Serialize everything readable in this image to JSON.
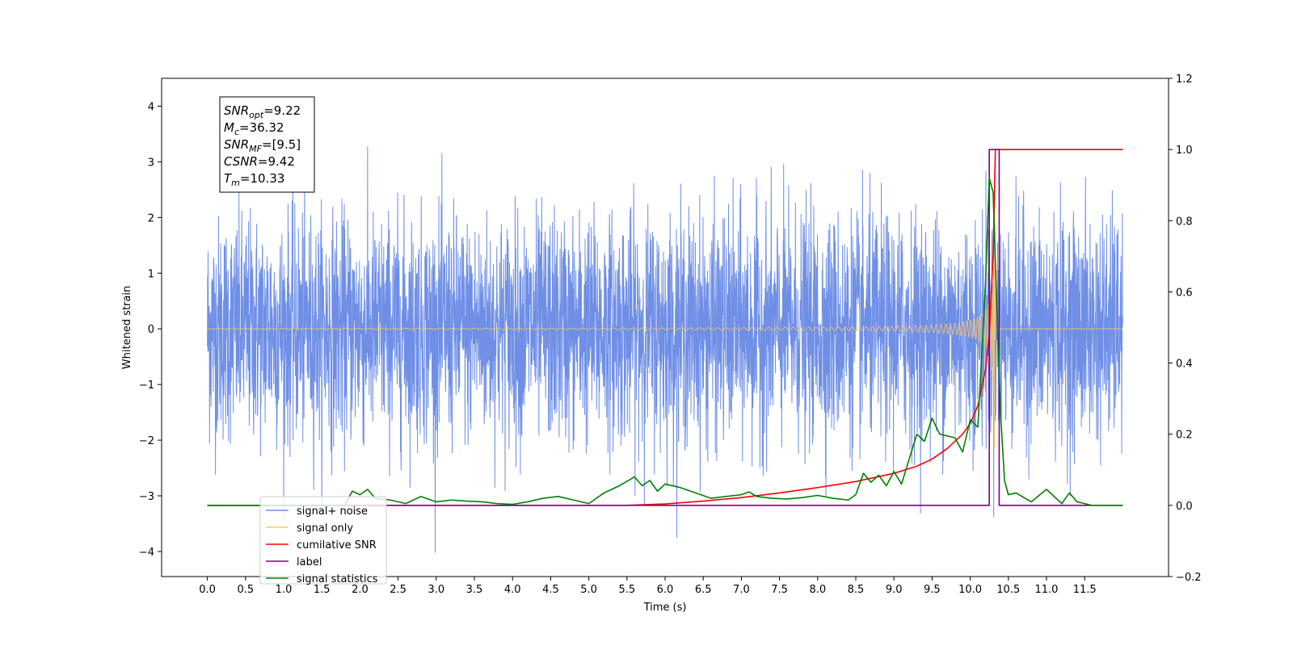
{
  "chart_data": {
    "type": "line",
    "xlabel": "Time (s)",
    "ylabel": "Whitened strain",
    "xlim": [
      -0.6,
      12.6
    ],
    "ylim": [
      -4.45,
      4.5
    ],
    "y2lim": [
      -0.2,
      1.2
    ],
    "x_ticks": [
      0.0,
      0.5,
      1.0,
      1.5,
      2.0,
      2.5,
      3.0,
      3.5,
      4.0,
      4.5,
      5.0,
      5.5,
      6.0,
      6.5,
      7.0,
      7.5,
      8.0,
      8.5,
      9.0,
      9.5,
      10.0,
      10.5,
      11.0,
      11.5
    ],
    "x_tick_labels": [
      "0.0",
      "0.5",
      "1.0",
      "1.5",
      "2.0",
      "2.5",
      "3.0",
      "3.5",
      "4.0",
      "4.5",
      "5.0",
      "5.5",
      "6.0",
      "6.5",
      "7.0",
      "7.5",
      "8.0",
      "8.5",
      "9.0",
      "9.5",
      "10.0",
      "10.5",
      "11.0",
      "11.5"
    ],
    "y_ticks": [
      -4,
      -3,
      -2,
      -1,
      0,
      1,
      2,
      3,
      4
    ],
    "y_tick_labels": [
      "−4",
      "−3",
      "−2",
      "−1",
      "0",
      "1",
      "2",
      "3",
      "4"
    ],
    "y2_ticks": [
      -0.2,
      0.0,
      0.2,
      0.4,
      0.6,
      0.8,
      1.0,
      1.2
    ],
    "y2_tick_labels": [
      "−0.2",
      "0.0",
      "0.2",
      "0.4",
      "0.6",
      "0.8",
      "1.0",
      "1.2"
    ],
    "legend_position": "lower-left",
    "legend": [
      {
        "name": "signal+ noise",
        "color": "#6f8fe6"
      },
      {
        "name": "signal only",
        "color": "#ffc864"
      },
      {
        "name": "cumilative SNR",
        "color": "#ff0000"
      },
      {
        "name": "label",
        "color": "#800080"
      },
      {
        "name": "signal statistics",
        "color": "#008000"
      }
    ],
    "info_box": [
      {
        "base": "SNR",
        "sub": "opt",
        "value": "=9.22"
      },
      {
        "base": "M",
        "sub": "c",
        "value": "=36.32"
      },
      {
        "base": "SNR",
        "sub": "MF",
        "value": "=[9.5]"
      },
      {
        "base": "CSNR",
        "sub": "",
        "value": "=9.42"
      },
      {
        "base": "T",
        "sub": "m",
        "value": "=10.33"
      }
    ],
    "series": [
      {
        "name": "signal+ noise",
        "axis": "left",
        "color": "#6f8fe6",
        "x_range": [
          0.0,
          12.0
        ],
        "typical_amplitude": 1.0,
        "approx_range": [
          -4.05,
          4.12
        ]
      },
      {
        "name": "signal only",
        "axis": "left",
        "color": "#ffc864",
        "chirp_end": 10.33,
        "peak_amplitude": 3.3
      },
      {
        "name": "cumilative SNR",
        "axis": "right",
        "color": "#ff0000",
        "x": [
          0.0,
          5.5,
          6.0,
          6.5,
          7.0,
          7.5,
          8.0,
          8.5,
          9.0,
          9.3,
          9.5,
          9.7,
          9.9,
          10.0,
          10.1,
          10.2,
          10.25,
          10.3,
          10.33,
          12.0
        ],
        "values": [
          0.0,
          0.0,
          0.004,
          0.012,
          0.022,
          0.035,
          0.05,
          0.067,
          0.09,
          0.11,
          0.13,
          0.16,
          0.2,
          0.23,
          0.28,
          0.38,
          0.48,
          0.7,
          1.0,
          1.0
        ]
      },
      {
        "name": "label",
        "axis": "right",
        "color": "#800080",
        "x": [
          0.0,
          10.25,
          10.25,
          10.38,
          10.38,
          12.0
        ],
        "values": [
          0.0,
          0.0,
          1.0,
          1.0,
          0.0,
          0.0
        ]
      },
      {
        "name": "signal statistics",
        "axis": "right",
        "color": "#008000",
        "x": [
          0.0,
          1.8,
          1.9,
          2.0,
          2.1,
          2.2,
          2.4,
          2.6,
          2.8,
          3.0,
          3.2,
          3.4,
          3.6,
          3.8,
          4.0,
          4.2,
          4.4,
          4.6,
          4.8,
          5.0,
          5.2,
          5.4,
          5.6,
          5.7,
          5.8,
          5.9,
          6.0,
          6.2,
          6.4,
          6.6,
          6.8,
          7.0,
          7.1,
          7.2,
          7.4,
          7.6,
          7.8,
          8.0,
          8.2,
          8.4,
          8.5,
          8.6,
          8.7,
          8.8,
          8.9,
          9.0,
          9.1,
          9.2,
          9.3,
          9.4,
          9.5,
          9.6,
          9.8,
          9.9,
          10.0,
          10.1,
          10.2,
          10.25,
          10.3,
          10.35,
          10.4,
          10.45,
          10.5,
          10.6,
          10.8,
          11.0,
          11.2,
          11.3,
          11.4,
          11.6,
          11.8,
          12.0
        ],
        "values": [
          0.0,
          0.0,
          0.04,
          0.03,
          0.045,
          0.02,
          0.015,
          0.005,
          0.025,
          0.01,
          0.015,
          0.012,
          0.01,
          0.005,
          0.003,
          0.01,
          0.02,
          0.025,
          0.015,
          0.005,
          0.035,
          0.055,
          0.08,
          0.055,
          0.07,
          0.04,
          0.06,
          0.05,
          0.035,
          0.02,
          0.025,
          0.03,
          0.038,
          0.025,
          0.02,
          0.018,
          0.022,
          0.028,
          0.02,
          0.015,
          0.03,
          0.09,
          0.065,
          0.085,
          0.055,
          0.095,
          0.06,
          0.13,
          0.2,
          0.18,
          0.245,
          0.2,
          0.19,
          0.15,
          0.24,
          0.22,
          0.62,
          0.92,
          0.88,
          0.55,
          0.25,
          0.07,
          0.03,
          0.035,
          0.01,
          0.045,
          0.005,
          0.035,
          0.01,
          0.0,
          0.0,
          0.0
        ]
      }
    ]
  }
}
